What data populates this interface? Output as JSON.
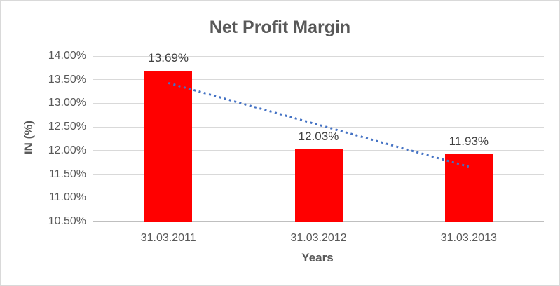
{
  "chart_data": {
    "type": "bar",
    "title": "Net Profit Margin",
    "xlabel": "Years",
    "ylabel": "IN (%)",
    "categories": [
      "31.03.2011",
      "31.03.2012",
      "31.03.2013"
    ],
    "values": [
      13.69,
      12.03,
      11.93
    ],
    "data_labels": [
      "13.69%",
      "12.03%",
      "11.93%"
    ],
    "yticks": [
      "10.50%",
      "11.00%",
      "11.50%",
      "12.00%",
      "12.50%",
      "13.00%",
      "13.50%",
      "14.00%"
    ],
    "ylim": [
      10.5,
      14.0
    ],
    "grid": true,
    "legend": "none",
    "bar_color": "#ff0000",
    "gridline_color": "#d9d9d9",
    "axis_line_color": "#bfbfbf",
    "text_color": "#595959",
    "data_label_color": "#404040",
    "trendline": {
      "type": "linear",
      "style": "dotted",
      "color": "#4472c4",
      "values_at_ends": [
        13.43,
        11.66
      ]
    }
  }
}
